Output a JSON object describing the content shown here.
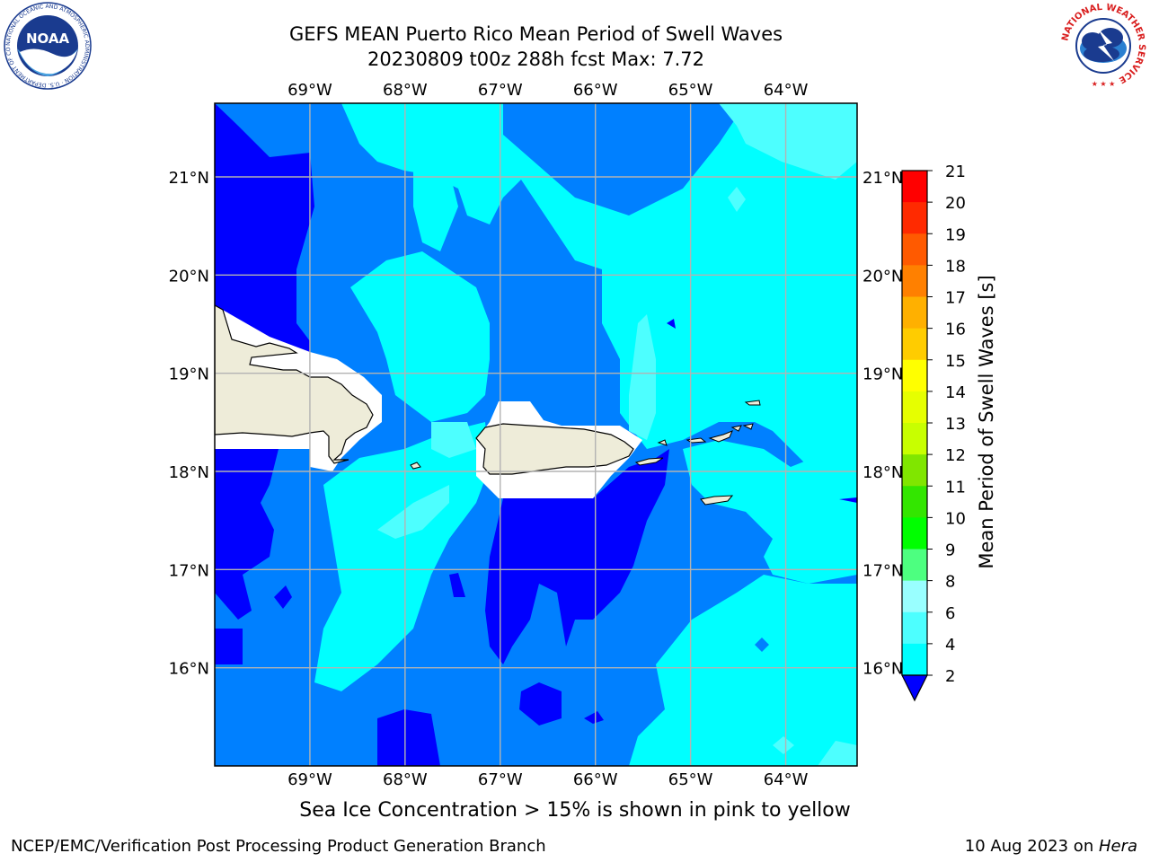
{
  "title": {
    "line1": "GEFS MEAN Puerto Rico Mean Period of Swell Waves",
    "line2": "20230809 t00z 288h fcst   Max: 7.72"
  },
  "map": {
    "lon_labels": [
      "69°W",
      "68°W",
      "67°W",
      "66°W",
      "65°W",
      "64°W"
    ],
    "lat_labels": [
      "21°N",
      "20°N",
      "19°N",
      "18°N",
      "17°N",
      "16°N"
    ],
    "extent": {
      "lon_min": -70.0,
      "lon_max": -63.25,
      "lat_min": 15.0,
      "lat_max": 21.75
    },
    "land_color": "#eeecd9",
    "grid_color": "#b3b3b3"
  },
  "colorbar": {
    "label": "Mean Period of Swell Waves [s]",
    "ticks": [
      "2",
      "4",
      "6",
      "8",
      "9",
      "10",
      "11",
      "12",
      "13",
      "14",
      "15",
      "16",
      "17",
      "18",
      "19",
      "20",
      "21"
    ],
    "colors": [
      "#0000ff",
      "#0080ff",
      "#00ffff",
      "#4dffff",
      "#99ffff",
      "#4dff80",
      "#00ff00",
      "#33e600",
      "#80e600",
      "#c8ff00",
      "#e6ff00",
      "#ffff00",
      "#ffcc00",
      "#ffb000",
      "#ff8000",
      "#ff5a00",
      "#ff2a00",
      "#ff0000"
    ],
    "extend": "min"
  },
  "notes": {
    "ice": "Sea Ice Concentration > 15% is shown in pink to yellow"
  },
  "footer": {
    "left": "NCEP/EMC/Verification Post Processing Product Generation Branch",
    "date": "10 Aug 2023 on ",
    "machine": "Hera"
  },
  "logos": {
    "noaa_text": "NOAA",
    "noaa_ring": "NATIONAL OCEANIC AND ATMOSPHERIC ADMINISTRATION · U.S. DEPARTMENT OF COMMERCE",
    "nws_ring": "NATIONAL WEATHER SERVICE"
  },
  "chart_data": {
    "type": "heatmap",
    "variable": "Mean Period of Swell Waves [s]",
    "levels": [
      2,
      4,
      6,
      8,
      9,
      10,
      11,
      12,
      13,
      14,
      15,
      16,
      17,
      18,
      19,
      20,
      21
    ],
    "max": 7.72,
    "region": "Puerto Rico",
    "lon_range": [
      -70.0,
      -63.25
    ],
    "lat_range": [
      15.0,
      21.75
    ]
  }
}
